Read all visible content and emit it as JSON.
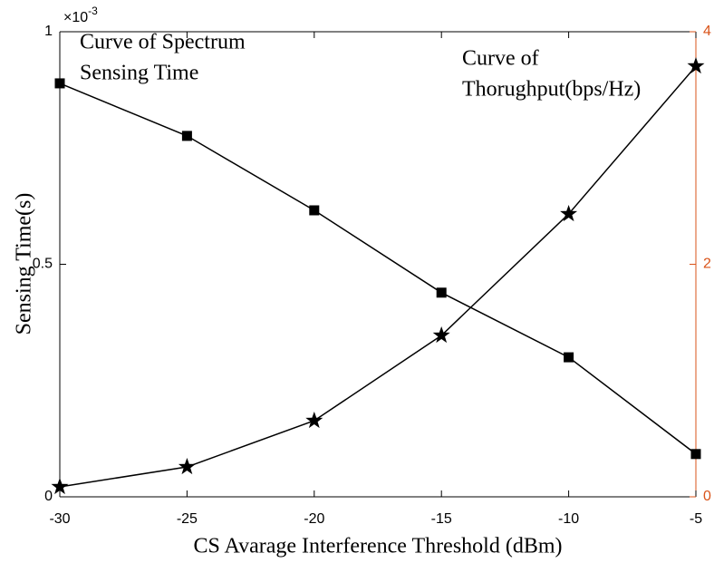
{
  "chart_data": {
    "type": "line",
    "xlabel": "CS Avarage Interference Threshold (dBm)",
    "ylabel": "Sensing Time(s)",
    "y_multiplier": {
      "base": "×10",
      "exponent": "-3"
    },
    "x": [
      -30,
      -25,
      -20,
      -15,
      -10,
      -5
    ],
    "xlim": [
      -30,
      -5
    ],
    "xticks": [
      -30,
      -25,
      -20,
      -15,
      -10,
      -5
    ],
    "ylim": [
      0,
      1
    ],
    "yticks": [
      0,
      0.5,
      1
    ],
    "y2lim": [
      0,
      4
    ],
    "y2ticks": [
      0,
      2,
      4
    ],
    "y2color": "#d95319",
    "series": [
      {
        "color": "#000000",
        "marker": "square",
        "values": [
          0.889,
          0.776,
          0.616,
          0.439,
          0.3,
          0.092
        ]
      },
      {
        "color": "#000000",
        "marker": "star",
        "axis": "y2",
        "values": [
          0.086,
          0.257,
          0.655,
          1.388,
          2.433,
          3.704
        ]
      }
    ],
    "annotations": [
      {
        "lines": [
          "Curve of Spectrum",
          "Sensing Time"
        ]
      },
      {
        "lines": [
          "Curve of",
          "Thorughput(bps/Hz)"
        ]
      }
    ]
  }
}
